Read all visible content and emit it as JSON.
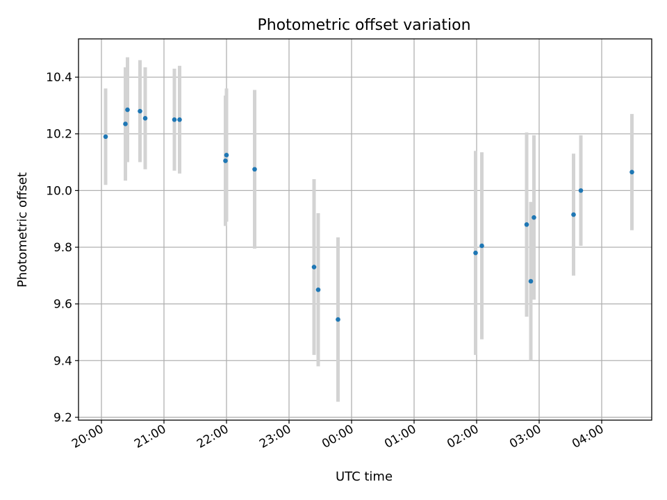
{
  "chart_data": {
    "type": "scatter",
    "title": "Photometric offset variation",
    "xlabel": "UTC time",
    "ylabel": "Photometric offset",
    "x_unit": "UTC time (HH:MM), spanning midnight",
    "xlim": [
      "19:38",
      "04:48"
    ],
    "ylim": [
      9.19,
      10.535
    ],
    "x_ticks": [
      "20:00",
      "21:00",
      "22:00",
      "23:00",
      "00:00",
      "01:00",
      "02:00",
      "03:00",
      "04:00"
    ],
    "y_ticks": [
      "9.2",
      "9.4",
      "9.6",
      "9.8",
      "10.0",
      "10.2",
      "10.4"
    ],
    "grid": true,
    "series": [
      {
        "marker_color": "#1f77b4",
        "errorbar_color": "#d3d3d3",
        "points": [
          {
            "x": "20:04",
            "y": 10.19,
            "yerr": 0.17
          },
          {
            "x": "20:23",
            "y": 10.235,
            "yerr": 0.2
          },
          {
            "x": "20:25",
            "y": 10.285,
            "yerr": 0.185
          },
          {
            "x": "20:37",
            "y": 10.28,
            "yerr": 0.18
          },
          {
            "x": "20:42",
            "y": 10.255,
            "yerr": 0.18
          },
          {
            "x": "21:10",
            "y": 10.25,
            "yerr": 0.18
          },
          {
            "x": "21:15",
            "y": 10.25,
            "yerr": 0.19
          },
          {
            "x": "21:59",
            "y": 10.105,
            "yerr": 0.23
          },
          {
            "x": "22:00",
            "y": 10.125,
            "yerr": 0.235
          },
          {
            "x": "22:27",
            "y": 10.075,
            "yerr": 0.28
          },
          {
            "x": "23:24",
            "y": 9.73,
            "yerr": 0.31
          },
          {
            "x": "23:28",
            "y": 9.65,
            "yerr": 0.27
          },
          {
            "x": "23:47",
            "y": 9.545,
            "yerr": 0.29
          },
          {
            "x": "01:59",
            "y": 9.78,
            "yerr": 0.36
          },
          {
            "x": "02:05",
            "y": 9.805,
            "yerr": 0.33
          },
          {
            "x": "02:48",
            "y": 9.88,
            "yerr": 0.325
          },
          {
            "x": "02:52",
            "y": 9.68,
            "yerr": 0.28
          },
          {
            "x": "02:55",
            "y": 9.905,
            "yerr": 0.29
          },
          {
            "x": "03:33",
            "y": 9.915,
            "yerr": 0.215
          },
          {
            "x": "03:40",
            "y": 10.0,
            "yerr": 0.195
          },
          {
            "x": "04:29",
            "y": 10.065,
            "yerr": 0.205
          }
        ]
      }
    ]
  }
}
